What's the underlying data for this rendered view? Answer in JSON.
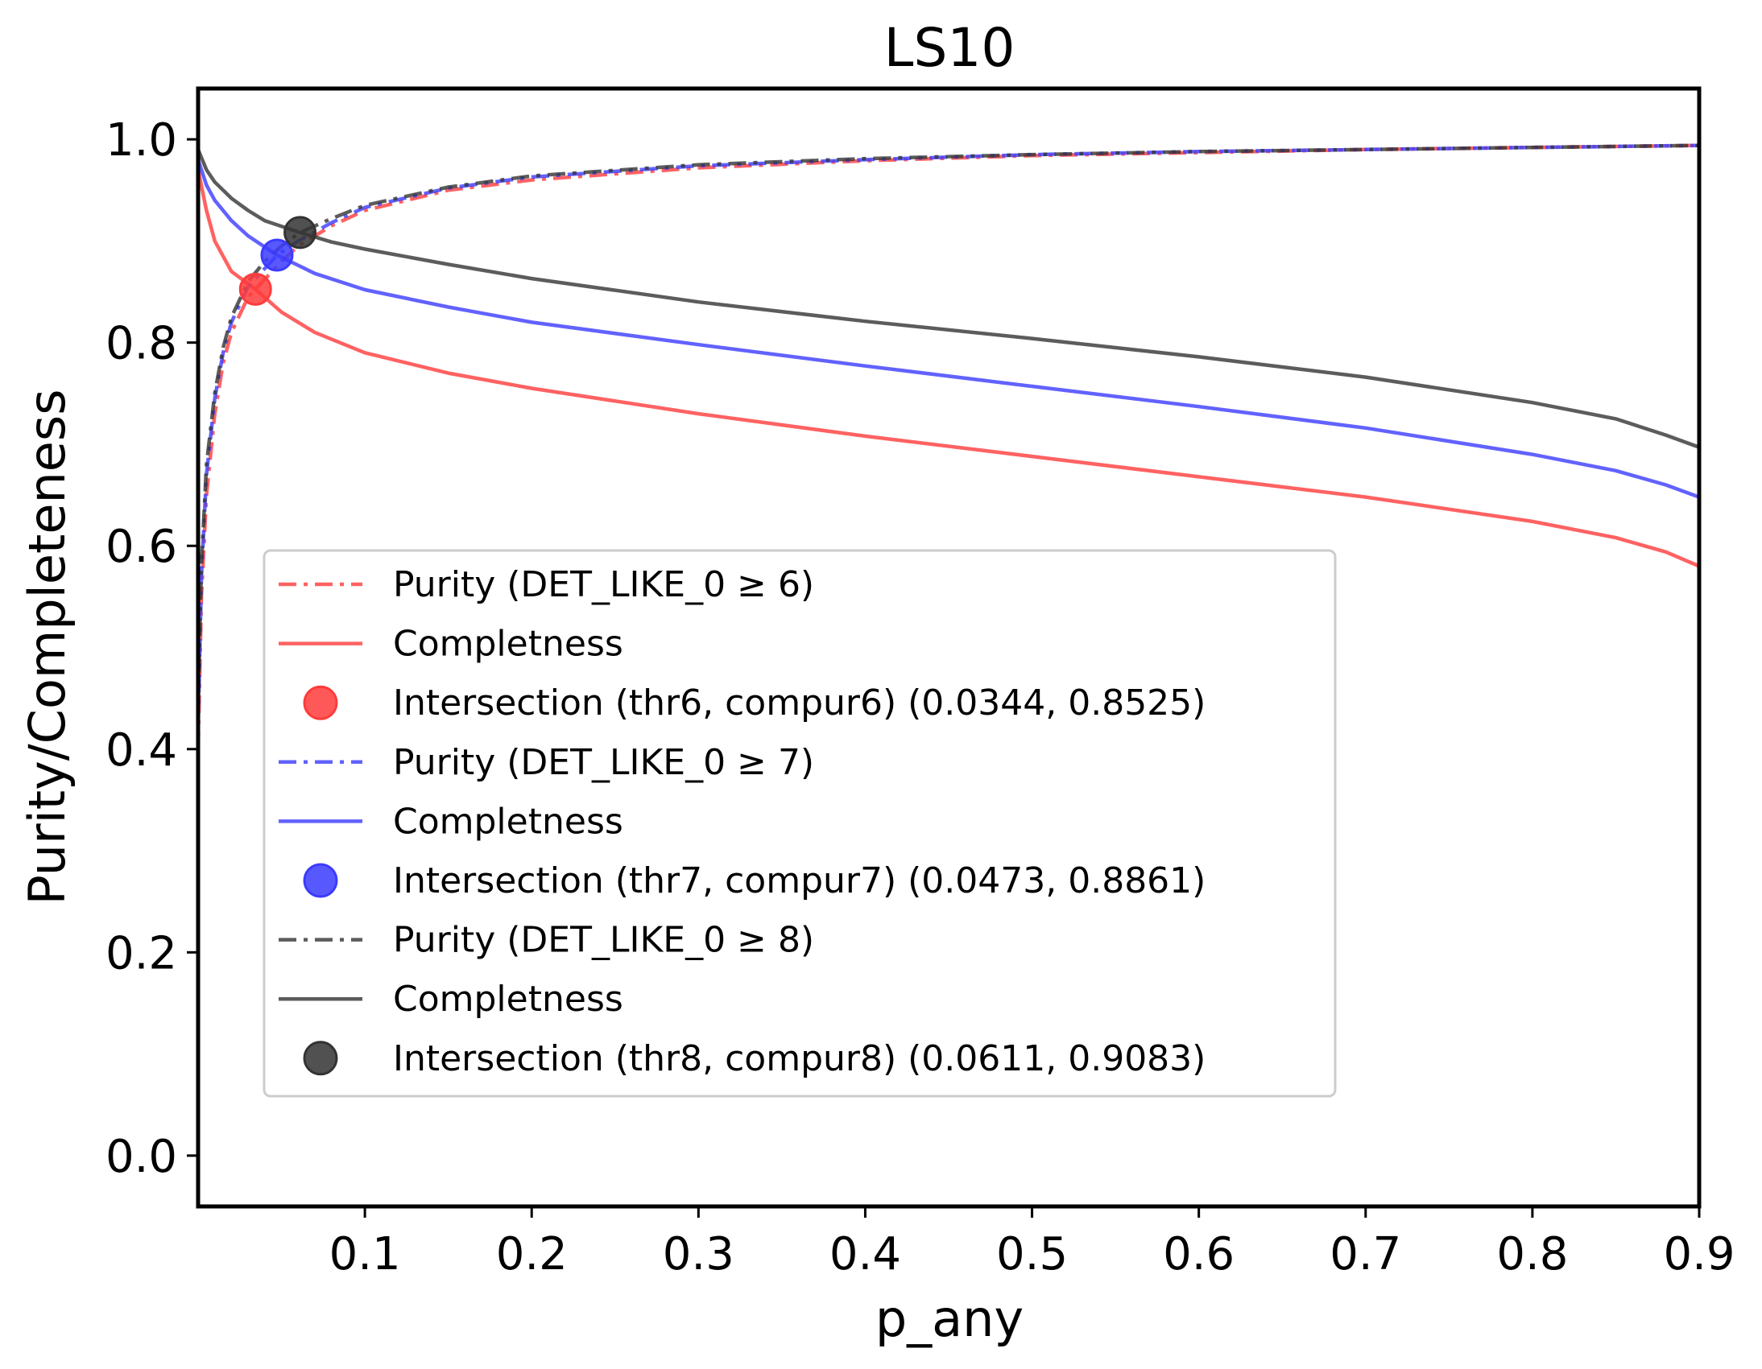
{
  "chart_data": {
    "type": "line",
    "title": "LS10",
    "xlabel": "p_any",
    "ylabel": "Purity/Completeness",
    "xlim": [
      0.0,
      0.9
    ],
    "ylim": [
      -0.05,
      1.05
    ],
    "xticks": [
      0.1,
      0.2,
      0.3,
      0.4,
      0.5,
      0.6,
      0.7,
      0.8,
      0.9
    ],
    "xtick_labels": [
      "0.1",
      "0.2",
      "0.3",
      "0.4",
      "0.5",
      "0.6",
      "0.7",
      "0.8",
      "0.9"
    ],
    "yticks": [
      0.0,
      0.2,
      0.4,
      0.6,
      0.8,
      1.0
    ],
    "ytick_labels": [
      "0.0",
      "0.2",
      "0.4",
      "0.6",
      "0.8",
      "1.0"
    ],
    "grid": false,
    "legend_position": "lower-left",
    "series": [
      {
        "name": "Purity (DET_LIKE_0 ≥ 6)",
        "style": "dashdot",
        "color": "#ff3b3b",
        "x": [
          0.0,
          0.002,
          0.005,
          0.01,
          0.015,
          0.02,
          0.03,
          0.0344,
          0.05,
          0.06,
          0.08,
          0.1,
          0.15,
          0.2,
          0.3,
          0.4,
          0.5,
          0.6,
          0.7,
          0.8,
          0.9
        ],
        "y": [
          0.4,
          0.55,
          0.65,
          0.73,
          0.78,
          0.81,
          0.845,
          0.8525,
          0.88,
          0.895,
          0.915,
          0.93,
          0.95,
          0.96,
          0.972,
          0.979,
          0.984,
          0.987,
          0.99,
          0.992,
          0.994
        ]
      },
      {
        "name": "Completness",
        "style": "solid",
        "color": "#ff3b3b",
        "x": [
          0.0,
          0.005,
          0.01,
          0.02,
          0.0344,
          0.05,
          0.07,
          0.1,
          0.15,
          0.2,
          0.3,
          0.4,
          0.5,
          0.6,
          0.7,
          0.8,
          0.85,
          0.88,
          0.9
        ],
        "y": [
          0.97,
          0.93,
          0.9,
          0.87,
          0.8525,
          0.83,
          0.81,
          0.79,
          0.77,
          0.755,
          0.73,
          0.708,
          0.688,
          0.668,
          0.648,
          0.624,
          0.608,
          0.594,
          0.58
        ]
      },
      {
        "name": "Intersection (thr6, compur6) (0.0344, 0.8525)",
        "style": "marker",
        "color": "#ff3b3b",
        "x": [
          0.0344
        ],
        "y": [
          0.8525
        ]
      },
      {
        "name": "Purity (DET_LIKE_0 ≥ 7)",
        "style": "dashdot",
        "color": "#3b3bff",
        "x": [
          0.0,
          0.002,
          0.005,
          0.01,
          0.015,
          0.02,
          0.03,
          0.0473,
          0.06,
          0.08,
          0.1,
          0.15,
          0.2,
          0.3,
          0.4,
          0.5,
          0.6,
          0.7,
          0.8,
          0.9
        ],
        "y": [
          0.42,
          0.57,
          0.67,
          0.745,
          0.79,
          0.82,
          0.855,
          0.8861,
          0.9,
          0.918,
          0.933,
          0.952,
          0.963,
          0.974,
          0.98,
          0.985,
          0.988,
          0.99,
          0.992,
          0.994
        ]
      },
      {
        "name": "Completness",
        "style": "solid",
        "color": "#3b3bff",
        "x": [
          0.0,
          0.005,
          0.01,
          0.02,
          0.03,
          0.0473,
          0.07,
          0.1,
          0.15,
          0.2,
          0.3,
          0.4,
          0.5,
          0.6,
          0.7,
          0.8,
          0.85,
          0.88,
          0.9
        ],
        "y": [
          0.98,
          0.955,
          0.94,
          0.92,
          0.905,
          0.8861,
          0.868,
          0.852,
          0.835,
          0.82,
          0.798,
          0.777,
          0.757,
          0.737,
          0.716,
          0.69,
          0.674,
          0.66,
          0.648
        ]
      },
      {
        "name": "Intersection (thr7, compur7) (0.0473, 0.8861)",
        "style": "marker",
        "color": "#3b3bff",
        "x": [
          0.0473
        ],
        "y": [
          0.8861
        ]
      },
      {
        "name": "Purity (DET_LIKE_0 ≥ 8)",
        "style": "dashdot",
        "color": "#333333",
        "x": [
          0.0,
          0.002,
          0.005,
          0.01,
          0.015,
          0.02,
          0.03,
          0.04,
          0.05,
          0.0611,
          0.08,
          0.1,
          0.15,
          0.2,
          0.3,
          0.4,
          0.5,
          0.6,
          0.7,
          0.8,
          0.9
        ],
        "y": [
          0.44,
          0.58,
          0.68,
          0.75,
          0.795,
          0.825,
          0.86,
          0.88,
          0.895,
          0.9083,
          0.922,
          0.935,
          0.953,
          0.964,
          0.975,
          0.981,
          0.985,
          0.988,
          0.99,
          0.992,
          0.994
        ]
      },
      {
        "name": "Completness",
        "style": "solid",
        "color": "#333333",
        "x": [
          0.0,
          0.005,
          0.01,
          0.02,
          0.03,
          0.04,
          0.0611,
          0.08,
          0.1,
          0.15,
          0.2,
          0.3,
          0.4,
          0.5,
          0.6,
          0.7,
          0.8,
          0.85,
          0.88,
          0.9
        ],
        "y": [
          0.99,
          0.97,
          0.958,
          0.942,
          0.93,
          0.92,
          0.9083,
          0.899,
          0.892,
          0.877,
          0.863,
          0.84,
          0.821,
          0.804,
          0.786,
          0.766,
          0.741,
          0.725,
          0.709,
          0.697
        ]
      },
      {
        "name": "Intersection (thr8, compur8) (0.0611, 0.9083)",
        "style": "marker",
        "color": "#333333",
        "x": [
          0.0611
        ],
        "y": [
          0.9083
        ]
      }
    ]
  }
}
